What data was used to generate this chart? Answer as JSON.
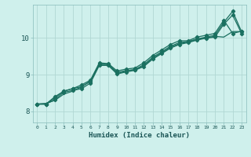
{
  "xlabel": "Humidex (Indice chaleur)",
  "ylabel": "",
  "xlim": [
    -0.5,
    23.5
  ],
  "ylim": [
    7.7,
    10.9
  ],
  "background_color": "#cff0ec",
  "grid_color": "#b0d8d4",
  "line_color": "#1a7060",
  "xticks": [
    0,
    1,
    2,
    3,
    4,
    5,
    6,
    7,
    8,
    9,
    10,
    11,
    12,
    13,
    14,
    15,
    16,
    17,
    18,
    19,
    20,
    21,
    22,
    23
  ],
  "yticks": [
    8,
    9,
    10
  ],
  "lines": [
    {
      "x": [
        0,
        1,
        2,
        3,
        4,
        5,
        6,
        7,
        8,
        9,
        10,
        11,
        12,
        13,
        14,
        15,
        16,
        17,
        18,
        19,
        20,
        21,
        22,
        23
      ],
      "y": [
        8.2,
        8.2,
        8.4,
        8.55,
        8.62,
        8.72,
        8.85,
        9.32,
        9.3,
        9.1,
        9.15,
        9.18,
        9.32,
        9.52,
        9.67,
        9.82,
        9.92,
        9.92,
        10.02,
        10.07,
        10.12,
        10.48,
        10.12,
        10.18
      ],
      "marker": "D",
      "ms": 2.2,
      "lw": 0.9
    },
    {
      "x": [
        0,
        1,
        2,
        3,
        4,
        5,
        6,
        7,
        8,
        9,
        10,
        11,
        12,
        13,
        14,
        15,
        16,
        17,
        18,
        19,
        20,
        21,
        22,
        23
      ],
      "y": [
        8.2,
        8.2,
        8.37,
        8.55,
        8.62,
        8.67,
        8.82,
        9.28,
        9.28,
        9.06,
        9.11,
        9.14,
        9.27,
        9.47,
        9.62,
        9.77,
        9.87,
        9.9,
        9.97,
        10.02,
        10.07,
        10.42,
        10.72,
        10.17
      ],
      "marker": "D",
      "ms": 2.2,
      "lw": 0.9
    },
    {
      "x": [
        0,
        1,
        2,
        3,
        4,
        5,
        6,
        7,
        8,
        9,
        10,
        11,
        12,
        13,
        14,
        15,
        16,
        17,
        18,
        19,
        20,
        21,
        22,
        23
      ],
      "y": [
        8.2,
        8.2,
        8.32,
        8.52,
        8.57,
        8.62,
        8.77,
        9.25,
        9.25,
        9.02,
        9.07,
        9.12,
        9.22,
        9.42,
        9.57,
        9.72,
        9.82,
        9.87,
        9.94,
        9.99,
        10.02,
        10.37,
        10.62,
        10.12
      ],
      "marker": "D",
      "ms": 2.2,
      "lw": 0.9
    },
    {
      "x": [
        0,
        1,
        2,
        3,
        4,
        5,
        6,
        7,
        8,
        9,
        10,
        11,
        12,
        13,
        14,
        15,
        16,
        17,
        18,
        19,
        20,
        21,
        22,
        23
      ],
      "y": [
        8.2,
        8.22,
        8.3,
        8.47,
        8.55,
        8.67,
        8.82,
        9.28,
        9.28,
        9.02,
        9.1,
        9.12,
        9.24,
        9.44,
        9.59,
        9.74,
        9.84,
        9.89,
        9.95,
        10.0,
        10.04,
        10.02,
        10.17,
        10.17
      ],
      "marker": null,
      "ms": 0,
      "lw": 0.9
    }
  ]
}
